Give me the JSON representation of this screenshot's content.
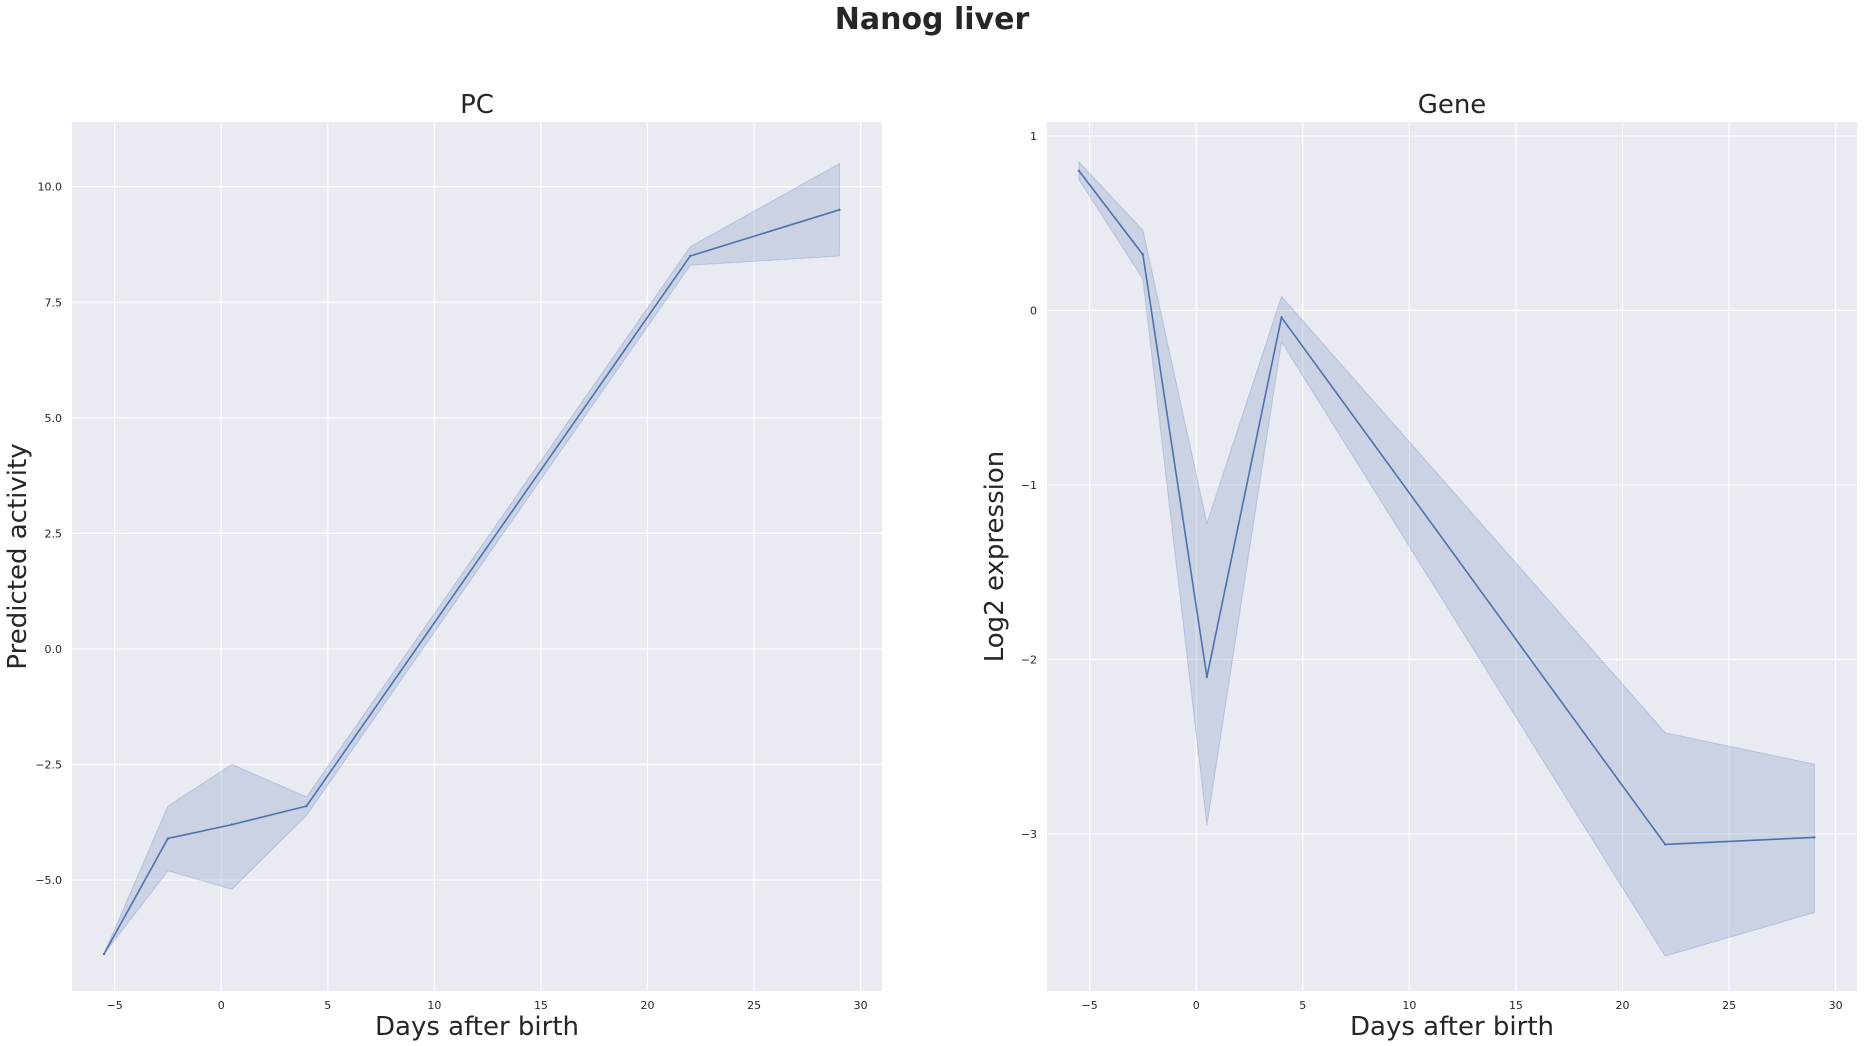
{
  "figure": {
    "suptitle": "Nanog liver"
  },
  "chart_data": [
    {
      "type": "line",
      "title": "PC",
      "xlabel": "Days after birth",
      "ylabel": "Predicted activity",
      "xlim": [
        -7,
        31
      ],
      "ylim": [
        -7.4,
        11.4
      ],
      "xticks": [
        -5,
        0,
        5,
        10,
        15,
        20,
        25,
        30
      ],
      "xtick_labels": [
        "−5",
        "0",
        "5",
        "10",
        "15",
        "20",
        "25",
        "30"
      ],
      "yticks": [
        -5.0,
        -2.5,
        0.0,
        2.5,
        5.0,
        7.5,
        10.0
      ],
      "ytick_labels": [
        "−5.0",
        "−2.5",
        "0.0",
        "2.5",
        "5.0",
        "7.5",
        "10.0"
      ],
      "grid": true,
      "line_color": "#4c72b0",
      "band_color": "#4c72b0",
      "x": [
        -5.5,
        -2.5,
        0.5,
        4.0,
        22.0,
        29.0
      ],
      "y": [
        -6.6,
        -4.1,
        -3.8,
        -3.4,
        8.5,
        9.5
      ],
      "ci_low": [
        -6.6,
        -4.8,
        -5.2,
        -3.6,
        8.3,
        8.5
      ],
      "ci_high": [
        -6.6,
        -3.4,
        -2.5,
        -3.2,
        8.7,
        10.5
      ]
    },
    {
      "type": "line",
      "title": "Gene",
      "xlabel": "Days after birth",
      "ylabel": "Log2 expression",
      "xlim": [
        -7,
        31
      ],
      "ylim": [
        -3.9,
        1.08
      ],
      "xticks": [
        -5,
        0,
        5,
        10,
        15,
        20,
        25,
        30
      ],
      "xtick_labels": [
        "−5",
        "0",
        "5",
        "10",
        "15",
        "20",
        "25",
        "30"
      ],
      "yticks": [
        -3,
        -2,
        -1,
        0,
        1
      ],
      "ytick_labels": [
        "−3",
        "−2",
        "−1",
        "0",
        "1"
      ],
      "grid": true,
      "line_color": "#4c72b0",
      "band_color": "#4c72b0",
      "x": [
        -5.5,
        -2.5,
        0.5,
        4.0,
        22.0,
        29.0
      ],
      "y": [
        0.8,
        0.32,
        -2.1,
        -0.04,
        -3.06,
        -3.02
      ],
      "ci_low": [
        0.75,
        0.18,
        -2.95,
        -0.18,
        -3.7,
        -3.45
      ],
      "ci_high": [
        0.85,
        0.46,
        -1.22,
        0.08,
        -2.42,
        -2.6
      ]
    }
  ]
}
